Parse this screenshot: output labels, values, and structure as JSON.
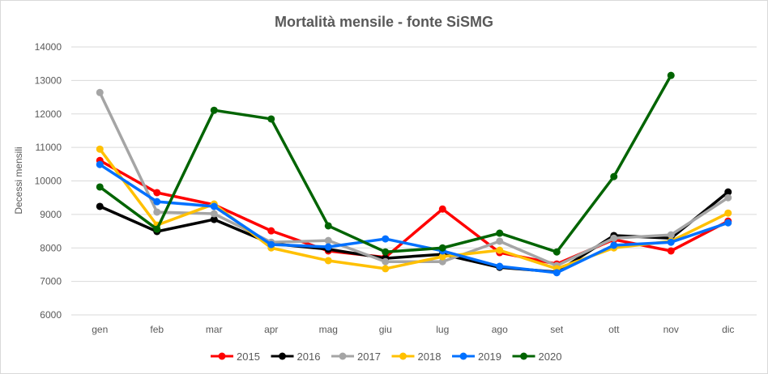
{
  "chart_data": {
    "type": "line",
    "title": "Mortalità mensile - fonte SiSMG",
    "xlabel": "",
    "ylabel": "Decessi mensili",
    "ylim": [
      6000,
      14000
    ],
    "yticks": [
      6000,
      7000,
      8000,
      9000,
      10000,
      11000,
      12000,
      13000,
      14000
    ],
    "grid": true,
    "legend_position": "bottom",
    "categories": [
      "gen",
      "feb",
      "mar",
      "apr",
      "mag",
      "giu",
      "lug",
      "ago",
      "set",
      "ott",
      "nov",
      "dic"
    ],
    "series": [
      {
        "name": "2015",
        "color": "#ff0000",
        "values": [
          10610,
          9650,
          9290,
          8510,
          7910,
          7720,
          9160,
          7860,
          7520,
          8250,
          7910,
          8800
        ]
      },
      {
        "name": "2016",
        "color": "#000000",
        "values": [
          9240,
          8490,
          8850,
          8130,
          7960,
          7690,
          7810,
          7420,
          7280,
          8370,
          8290,
          9670
        ]
      },
      {
        "name": "2017",
        "color": "#a5a5a5",
        "values": [
          12640,
          9070,
          9020,
          8170,
          8220,
          7590,
          7590,
          8200,
          7470,
          8290,
          8390,
          9500
        ]
      },
      {
        "name": "2018",
        "color": "#ffc000",
        "values": [
          10950,
          8680,
          9310,
          8000,
          7620,
          7380,
          7740,
          7930,
          7380,
          8000,
          8200,
          9040
        ]
      },
      {
        "name": "2019",
        "color": "#0070ff",
        "values": [
          10490,
          9380,
          9240,
          8100,
          8030,
          8270,
          7910,
          7450,
          7260,
          8080,
          8170,
          8750
        ]
      },
      {
        "name": "2020",
        "color": "#006400",
        "values": [
          9820,
          8560,
          12110,
          11850,
          8660,
          7880,
          8000,
          8440,
          7880,
          10130,
          13150,
          null
        ]
      }
    ]
  }
}
